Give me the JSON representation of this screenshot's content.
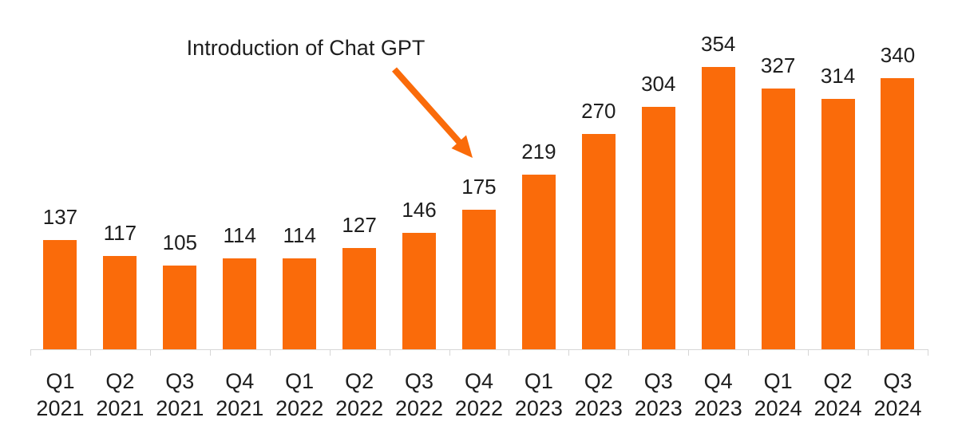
{
  "chart_data": {
    "type": "bar",
    "title": "",
    "xlabel": "",
    "ylabel": "",
    "categories": [
      "Q1 2021",
      "Q2 2021",
      "Q3 2021",
      "Q4 2021",
      "Q1 2022",
      "Q2 2022",
      "Q3 2022",
      "Q4 2022",
      "Q1 2023",
      "Q2 2023",
      "Q3 2023",
      "Q4 2023",
      "Q1 2024",
      "Q2 2024",
      "Q3 2024"
    ],
    "values": [
      137,
      117,
      105,
      114,
      114,
      127,
      146,
      175,
      219,
      270,
      304,
      354,
      327,
      314,
      340
    ],
    "value_labels_shown": true,
    "ylim": [
      0,
      380
    ],
    "grid": false,
    "legend_position": "none",
    "bar_color": "#FA6B0A",
    "axis_color": "#D6D6D6",
    "text_color": "#1E1E1E",
    "annotation": {
      "text": "Introduction of Chat GPT",
      "target_category": "Q4 2022",
      "arrow_color": "#FA6B0A"
    }
  }
}
